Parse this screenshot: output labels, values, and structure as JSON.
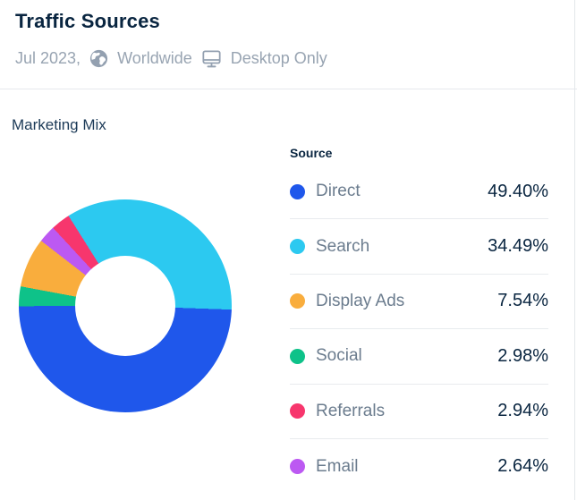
{
  "header": {
    "title": "Traffic Sources",
    "period": "Jul 2023,",
    "region": "Worldwide",
    "device": "Desktop Only"
  },
  "icons": {
    "globe": "globe-icon",
    "desktop": "desktop-monitor-icon"
  },
  "section": {
    "title": "Marketing Mix"
  },
  "legend": {
    "header": "Source"
  },
  "colors": {
    "title_text": "#092540",
    "section_text": "#1c3a57",
    "label_text": "#6b7c8e",
    "subtitle_text": "#98a4b2",
    "icon_gray": "#93a0b0",
    "divider": "#e6e9ed",
    "row_separator": "#e8ebee"
  },
  "chart_data": {
    "type": "pie",
    "subtype": "donut",
    "title": "Marketing Mix",
    "categories": [
      "Direct",
      "Search",
      "Display Ads",
      "Social",
      "Referrals",
      "Email"
    ],
    "values": [
      49.4,
      34.49,
      7.54,
      2.98,
      2.94,
      2.64
    ],
    "display_values": [
      "49.40%",
      "34.49%",
      "7.54%",
      "2.98%",
      "2.94%",
      "2.64%"
    ],
    "colors": [
      "#1f57eb",
      "#2cc9f0",
      "#f9ad3d",
      "#0ec289",
      "#f7366d",
      "#bc59f2"
    ],
    "unit": "%",
    "legend_position": "right",
    "legend_header": "Source",
    "donut_inner_radius_ratio": 0.47,
    "start_angle_deg": 92,
    "clockwise_draw_order_indices": [
      0,
      3,
      2,
      5,
      4,
      1
    ]
  }
}
